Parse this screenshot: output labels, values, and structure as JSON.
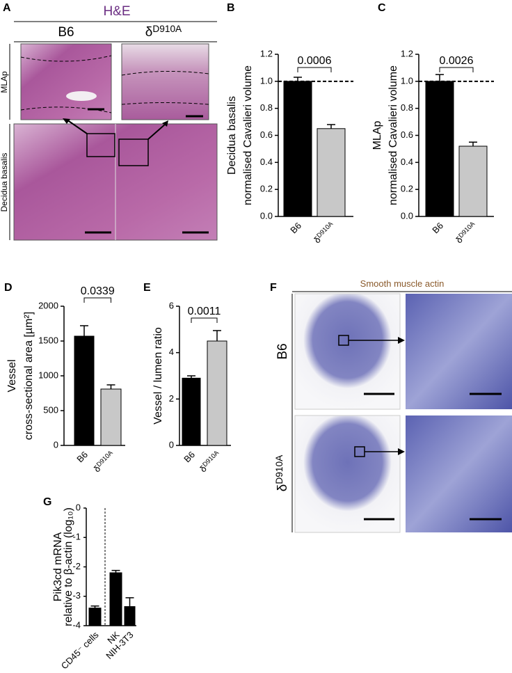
{
  "panels": {
    "A": {
      "letter": "A",
      "title": "H&E",
      "columns": [
        "B6",
        "δD910A"
      ],
      "rows": [
        "MLAp",
        "Decidua basalis"
      ]
    },
    "F": {
      "letter": "F",
      "title": "Smooth muscle actin",
      "rows": [
        "B6",
        "δD910A"
      ]
    }
  },
  "chart_data": [
    {
      "type": "bar",
      "panel": "B",
      "y_label": [
        "Decidua basalis",
        "normalised Cavalieri volume"
      ],
      "categories": [
        "B6",
        "δD910A"
      ],
      "values": [
        1.0,
        0.65
      ],
      "errors": [
        0.03,
        0.03
      ],
      "colors": [
        "#000000",
        "#c8c8c8"
      ],
      "ylim": [
        0,
        1.2
      ],
      "yticks": [
        {
          "value": 0,
          "label": "0.0"
        },
        0.2,
        0.4,
        0.6,
        0.8,
        {
          "value": 1,
          "label": "1.0"
        },
        1.2
      ],
      "reference_line": 1,
      "annotation": "0.0006"
    },
    {
      "type": "bar",
      "panel": "C",
      "y_label": [
        "MLAp",
        "normalised Cavalieri volume"
      ],
      "categories": [
        "B6",
        "δD910A"
      ],
      "values": [
        1.0,
        0.52
      ],
      "errors": [
        0.05,
        0.03
      ],
      "colors": [
        "#000000",
        "#c8c8c8"
      ],
      "ylim": [
        0,
        1.2
      ],
      "yticks": [
        {
          "value": 0,
          "label": "0.0"
        },
        0.2,
        0.4,
        0.6,
        0.8,
        {
          "value": 1,
          "label": "1.0"
        },
        1.2
      ],
      "reference_line": 1,
      "annotation": "0.0026"
    },
    {
      "type": "bar",
      "panel": "D",
      "y_label": [
        "Vessel",
        "cross-sectional area [µm²]"
      ],
      "categories": [
        "B6",
        "δD910A"
      ],
      "values": [
        1570,
        810
      ],
      "errors": [
        150,
        60
      ],
      "colors": [
        "#000000",
        "#c8c8c8"
      ],
      "ylim": [
        0,
        2000
      ],
      "yticks": [
        0,
        500,
        1000,
        1500,
        2000
      ],
      "annotation": "0.0339"
    },
    {
      "type": "bar",
      "panel": "E",
      "y_label": [
        "Vessel / lumen ratio"
      ],
      "categories": [
        "B6",
        "δD910A"
      ],
      "values": [
        2.9,
        4.5
      ],
      "errors": [
        0.1,
        0.45
      ],
      "colors": [
        "#000000",
        "#c8c8c8"
      ],
      "ylim": [
        0,
        6
      ],
      "yticks": [
        0,
        2,
        4,
        6
      ],
      "annotation": "0.0011"
    },
    {
      "type": "bar",
      "panel": "G",
      "y_label": [
        "Pik3cd mRNA",
        "relative to β-actin (log₁₀)"
      ],
      "categories": [
        "CD45⁻ cells",
        "NK",
        "NIH-3T3"
      ],
      "values": [
        -3.4,
        -2.2,
        -3.35
      ],
      "errors": [
        0.07,
        0.08,
        0.3
      ],
      "colors": [
        "#000000",
        "#000000",
        "#000000"
      ],
      "ylim": [
        -4,
        0
      ],
      "yticks": [
        0,
        -1,
        -2,
        -3,
        -4
      ]
    }
  ]
}
